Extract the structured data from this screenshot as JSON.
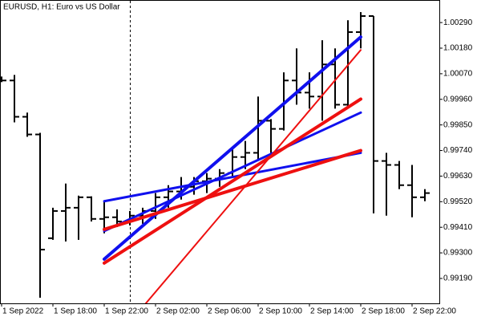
{
  "chart_data": {
    "type": "ohlc",
    "title": "EURUSD, H1:  Euro vs US Dollar",
    "categories": [
      "1 Sep 2022",
      null,
      null,
      null,
      "1 Sep 18:00",
      null,
      null,
      null,
      "1 Sep 22:00",
      null,
      null,
      null,
      "2 Sep 02:00",
      null,
      null,
      null,
      "2 Sep 06:00",
      null,
      null,
      null,
      "2 Sep 10:00",
      null,
      null,
      null,
      "2 Sep 14:00",
      null,
      null,
      null,
      "2 Sep 18:00",
      null,
      null,
      null,
      "2 Sep 22:00",
      null
    ],
    "open": [
      1.00041,
      1.00041,
      0.99885,
      0.99809,
      0.99363,
      0.9948,
      0.99494,
      0.99539,
      0.99446,
      0.99453,
      0.99435,
      0.9946,
      0.9948,
      0.99539,
      0.99564,
      0.99584,
      0.99608,
      0.99619,
      0.99643,
      0.99712,
      0.9973,
      0.99868,
      0.99833,
      1.00041,
      0.99989,
      0.99972,
      1.0011,
      0.99937,
      1.00249,
      1.00318,
      0.99695,
      0.99678,
      0.99591,
      0.99539
    ],
    "high": [
      1.00058,
      1.00065,
      0.99903,
      0.99816,
      0.99494,
      0.99598,
      0.99546,
      0.99543,
      0.99522,
      0.99487,
      0.9948,
      0.99494,
      0.99557,
      0.99591,
      0.99626,
      0.99626,
      0.99643,
      0.9966,
      0.99747,
      0.99781,
      0.99972,
      0.99875,
      1.00076,
      1.00179,
      1.00076,
      1.00214,
      1.00179,
      1.003,
      1.00335,
      1.00318,
      0.9973,
      0.99695,
      0.99678,
      0.99574
    ],
    "low": [
      1.00034,
      0.99861,
      0.99799,
      0.99107,
      0.99356,
      0.99349,
      0.99356,
      0.99435,
      0.99384,
      0.99411,
      0.99418,
      0.99425,
      0.99446,
      0.99494,
      0.99529,
      0.9955,
      0.99557,
      0.99584,
      0.99626,
      0.9966,
      0.99695,
      0.9973,
      0.99826,
      0.99937,
      0.9992,
      0.99868,
      0.9992,
      0.9992,
      1.00179,
      0.9947,
      0.9946,
      0.99574,
      0.99453,
      0.99522
    ],
    "close": [
      1.00041,
      0.99885,
      0.99809,
      0.99314,
      0.9948,
      0.99494,
      0.99539,
      0.99446,
      0.99453,
      0.99435,
      0.9946,
      0.9948,
      0.99539,
      0.99564,
      0.99584,
      0.99608,
      0.99619,
      0.99643,
      0.99712,
      0.9973,
      0.99868,
      0.99833,
      1.00041,
      0.99989,
      0.99972,
      1.0011,
      0.99937,
      1.00249,
      1.00318,
      0.99695,
      0.99678,
      0.99591,
      0.99539,
      0.99557
    ],
    "color": "#000000",
    "ylim": [
      0.99083,
      1.00387
    ],
    "yticks": [
      {
        "value": 1.0029,
        "label": "1.00290"
      },
      {
        "value": 1.0018,
        "label": "1.00180"
      },
      {
        "value": 1.0007,
        "label": "1.00070"
      },
      {
        "value": 0.9996,
        "label": "0.99960"
      },
      {
        "value": 0.9985,
        "label": "0.99850"
      },
      {
        "value": 0.9974,
        "label": "0.99740"
      },
      {
        "value": 0.9963,
        "label": "0.99630"
      },
      {
        "value": 0.9952,
        "label": "0.99520"
      },
      {
        "value": 0.9941,
        "label": "0.99410"
      },
      {
        "value": 0.993,
        "label": "0.99300"
      },
      {
        "value": 0.9919,
        "label": "0.99190"
      }
    ],
    "grid": false,
    "vline": 10,
    "trendlines": [
      {
        "color": "#1010ee",
        "width": 4,
        "x": [
          8,
          28
        ],
        "values": [
          0.99273,
          1.00228
        ]
      },
      {
        "color": "#1010ee",
        "width": 3,
        "x": [
          8,
          28
        ],
        "values": [
          0.99522,
          0.9973
        ]
      },
      {
        "color": "#1010ee",
        "width": 3,
        "x": [
          8,
          28
        ],
        "values": [
          0.99394,
          0.99903
        ]
      },
      {
        "color": "#ee1010",
        "width": 4,
        "x": [
          8,
          28
        ],
        "values": [
          0.99256,
          0.99961
        ]
      },
      {
        "color": "#ee1010",
        "width": 4,
        "x": [
          8,
          28
        ],
        "values": [
          0.99401,
          0.9974
        ]
      },
      {
        "color": "#ee1010",
        "width": 2,
        "x": [
          11,
          28
        ],
        "values": [
          0.99067,
          1.00172
        ]
      }
    ]
  }
}
